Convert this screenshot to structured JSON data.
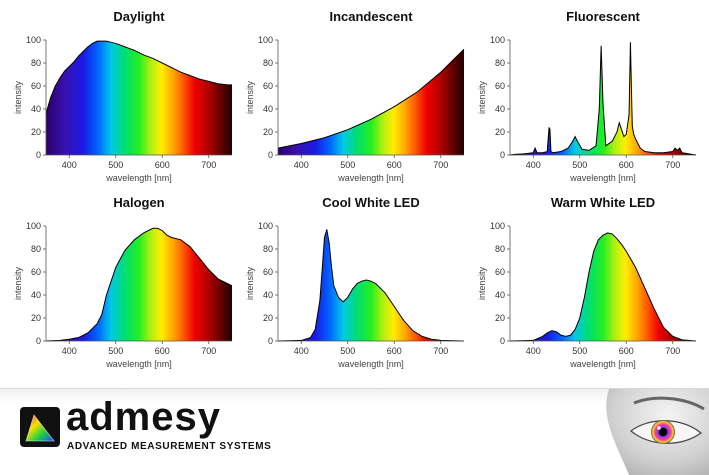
{
  "chart_data": [
    {
      "type": "area",
      "title": "Daylight",
      "xlabel": "wavelength [nm]",
      "ylabel": "intensity",
      "xlim": [
        350,
        750
      ],
      "ylim": [
        0,
        100
      ],
      "xticks": [
        400,
        500,
        600,
        700
      ],
      "yticks": [
        0,
        20,
        40,
        60,
        80,
        100
      ],
      "x": [
        350,
        360,
        370,
        380,
        390,
        400,
        410,
        420,
        430,
        440,
        450,
        460,
        470,
        480,
        490,
        500,
        520,
        540,
        560,
        580,
        600,
        620,
        640,
        660,
        680,
        700,
        720,
        740,
        750
      ],
      "values": [
        36,
        50,
        60,
        67,
        73,
        77,
        81,
        86,
        90,
        94,
        97,
        99,
        99,
        99,
        98,
        97,
        94,
        91,
        87,
        84,
        80,
        76,
        72,
        69,
        66,
        64,
        62,
        61,
        61
      ]
    },
    {
      "type": "area",
      "title": "Incandescent",
      "xlabel": "wavelength [nm]",
      "ylabel": "intensity",
      "xlim": [
        350,
        750
      ],
      "ylim": [
        0,
        100
      ],
      "xticks": [
        400,
        500,
        600,
        700
      ],
      "yticks": [
        0,
        20,
        40,
        60,
        80,
        100
      ],
      "x": [
        350,
        400,
        450,
        500,
        550,
        600,
        650,
        700,
        750
      ],
      "values": [
        6,
        10,
        15,
        22,
        31,
        42,
        55,
        72,
        92
      ]
    },
    {
      "type": "area",
      "title": "Fluorescent",
      "xlabel": "wavelength [nm]",
      "ylabel": "intensity",
      "xlim": [
        350,
        750
      ],
      "ylim": [
        0,
        100
      ],
      "xticks": [
        400,
        500,
        600,
        700
      ],
      "yticks": [
        0,
        20,
        40,
        60,
        80,
        100
      ],
      "x": [
        350,
        360,
        380,
        400,
        404,
        408,
        420,
        430,
        434,
        436,
        438,
        442,
        460,
        475,
        485,
        490,
        495,
        505,
        520,
        535,
        542,
        546,
        550,
        556,
        570,
        580,
        585,
        590,
        595,
        600,
        606,
        609,
        611,
        613,
        616,
        620,
        625,
        630,
        640,
        660,
        680,
        700,
        705,
        710,
        715,
        720,
        750
      ],
      "values": [
        0,
        0.5,
        1,
        2,
        6,
        2,
        2,
        3,
        24,
        22,
        3,
        2,
        3,
        6,
        12,
        16,
        12,
        5,
        4,
        8,
        40,
        95,
        45,
        8,
        12,
        20,
        28,
        22,
        16,
        18,
        35,
        98,
        60,
        25,
        18,
        14,
        10,
        6,
        3,
        2,
        2,
        3,
        6,
        4,
        6,
        2,
        0
      ]
    },
    {
      "type": "area",
      "title": "Halogen",
      "xlabel": "wavelength [nm]",
      "ylabel": "intensity",
      "xlim": [
        350,
        750
      ],
      "ylim": [
        0,
        100
      ],
      "xticks": [
        400,
        500,
        600,
        700
      ],
      "yticks": [
        0,
        20,
        40,
        60,
        80,
        100
      ],
      "x": [
        350,
        380,
        400,
        420,
        440,
        460,
        470,
        480,
        500,
        520,
        540,
        560,
        580,
        590,
        600,
        610,
        620,
        640,
        660,
        680,
        700,
        720,
        750
      ],
      "values": [
        0,
        0.5,
        1.5,
        3,
        7,
        15,
        23,
        40,
        64,
        79,
        88,
        94,
        98,
        98,
        96,
        92,
        90,
        88,
        82,
        72,
        62,
        54,
        48
      ]
    },
    {
      "type": "area",
      "title": "Cool White LED",
      "xlabel": "wavelength [nm]",
      "ylabel": "intensity",
      "xlim": [
        350,
        750
      ],
      "ylim": [
        0,
        100
      ],
      "xticks": [
        400,
        500,
        600,
        700
      ],
      "yticks": [
        0,
        20,
        40,
        60,
        80,
        100
      ],
      "x": [
        350,
        400,
        420,
        430,
        440,
        445,
        450,
        455,
        460,
        465,
        470,
        480,
        490,
        500,
        510,
        520,
        530,
        540,
        550,
        560,
        580,
        600,
        620,
        640,
        660,
        680,
        700,
        750
      ],
      "values": [
        0,
        0.5,
        3,
        10,
        35,
        62,
        90,
        97,
        85,
        65,
        48,
        38,
        34,
        38,
        45,
        50,
        52,
        53,
        52,
        50,
        42,
        30,
        18,
        9,
        4,
        1.5,
        0.5,
        0
      ]
    },
    {
      "type": "area",
      "title": "Warm White LED",
      "xlabel": "wavelength [nm]",
      "ylabel": "intensity",
      "xlim": [
        350,
        750
      ],
      "ylim": [
        0,
        100
      ],
      "xticks": [
        400,
        500,
        600,
        700
      ],
      "yticks": [
        0,
        20,
        40,
        60,
        80,
        100
      ],
      "x": [
        350,
        400,
        420,
        430,
        440,
        450,
        460,
        470,
        480,
        490,
        500,
        510,
        520,
        530,
        540,
        550,
        560,
        570,
        580,
        590,
        600,
        620,
        640,
        660,
        680,
        700,
        720,
        750
      ],
      "values": [
        0,
        0.5,
        4,
        7,
        9,
        8,
        5,
        4,
        5,
        10,
        20,
        38,
        60,
        78,
        88,
        92,
        94,
        93,
        89,
        84,
        78,
        64,
        46,
        28,
        12,
        4,
        1,
        0
      ]
    }
  ],
  "footer": {
    "brand_name": "admesy",
    "tagline": "ADVANCED MEASUREMENT SYSTEMS",
    "logo_icon": "color-gamut-triangle-icon",
    "eye_icon": "eye-illustration-icon"
  }
}
